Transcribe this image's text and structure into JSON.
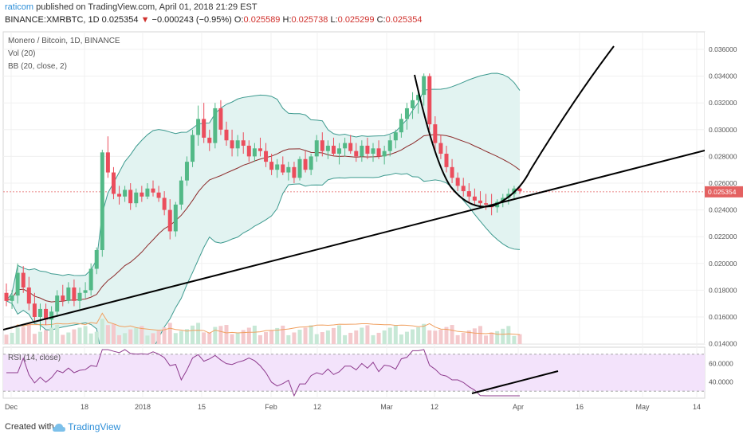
{
  "header": {
    "author": "raticom",
    "published_text": "published on TradingView.com, April 01, 2018 21:29 EST",
    "symbol": "BINANCE:XMRBTC, 1D",
    "last": "0.025354",
    "arrow": "▼",
    "change": "−0.000243 (−0.95%)",
    "o_label": "O:",
    "o_value": "0.025589",
    "h_label": "H:",
    "h_value": "0.025738",
    "l_label": "L:",
    "l_value": "0.025299",
    "c_label": "C:",
    "c_value": "0.025354"
  },
  "legend": {
    "title": "Monero / Bitcoin, 1D, BINANCE",
    "vol": "Vol (20)",
    "bb": "BB (20, close, 2)",
    "rsi": "RSI (14, close)"
  },
  "footer": {
    "created_with": "Created with",
    "brand": "TradingView"
  },
  "colors": {
    "up": "#53b987",
    "down": "#eb4d5c",
    "bb_fill": "#e2f3f1",
    "bb_band": "#3d9a8f",
    "bb_basis": "#8c2a2a",
    "vol_up": "#c7e8d6",
    "vol_down": "#f4c9cc",
    "vol_ma": "#f0a060",
    "rsi_line": "#8e3b8e",
    "rsi_fill": "#f3e3fb",
    "last_price_bg": "#e46161",
    "drawing": "#000000"
  },
  "chart_data": {
    "type": "candlestick",
    "price_axis_ticks": [
      "0.036000",
      "0.034000",
      "0.032000",
      "0.030000",
      "0.028000",
      "0.026000",
      "0.024000",
      "0.022000",
      "0.020000",
      "0.018000",
      "0.016000",
      "0.014000"
    ],
    "last_price_label": "0.025354",
    "last_price": 0.025354,
    "time_axis_ticks": [
      "Dec",
      "18",
      "2018",
      "15",
      "Feb",
      "12",
      "Mar",
      "12",
      "Apr",
      "16",
      "May",
      "14"
    ],
    "rsi_axis_ticks": [
      "60.0000",
      "40.0000"
    ],
    "rsi_levels": [
      70,
      30
    ],
    "ohlc_approx": [
      [
        0.0178,
        0.0185,
        0.0168,
        0.0172
      ],
      [
        0.0172,
        0.018,
        0.0166,
        0.0176
      ],
      [
        0.0176,
        0.02,
        0.017,
        0.0193
      ],
      [
        0.0193,
        0.0198,
        0.0178,
        0.0182
      ],
      [
        0.0182,
        0.019,
        0.0165,
        0.017
      ],
      [
        0.017,
        0.0178,
        0.0156,
        0.016
      ],
      [
        0.016,
        0.017,
        0.015,
        0.0166
      ],
      [
        0.0166,
        0.017,
        0.0154,
        0.0158
      ],
      [
        0.0158,
        0.0168,
        0.0152,
        0.0164
      ],
      [
        0.0164,
        0.018,
        0.016,
        0.0176
      ],
      [
        0.0176,
        0.0184,
        0.0168,
        0.0172
      ],
      [
        0.0172,
        0.0186,
        0.017,
        0.0182
      ],
      [
        0.0182,
        0.0188,
        0.0168,
        0.0172
      ],
      [
        0.0172,
        0.0182,
        0.0166,
        0.0178
      ],
      [
        0.0178,
        0.0186,
        0.0174,
        0.018
      ],
      [
        0.018,
        0.02,
        0.0176,
        0.0196
      ],
      [
        0.0196,
        0.0212,
        0.0192,
        0.021
      ],
      [
        0.021,
        0.0285,
        0.0205,
        0.0283
      ],
      [
        0.0283,
        0.0295,
        0.0264,
        0.0268
      ],
      [
        0.0268,
        0.0272,
        0.0248,
        0.0252
      ],
      [
        0.0252,
        0.0258,
        0.0244,
        0.025
      ],
      [
        0.025,
        0.0258,
        0.0246,
        0.0255
      ],
      [
        0.0255,
        0.026,
        0.024,
        0.0245
      ],
      [
        0.0245,
        0.0256,
        0.0242,
        0.0253
      ],
      [
        0.0253,
        0.0258,
        0.0246,
        0.025
      ],
      [
        0.025,
        0.026,
        0.0248,
        0.0256
      ],
      [
        0.0256,
        0.0262,
        0.025,
        0.0253
      ],
      [
        0.0253,
        0.0258,
        0.0246,
        0.0249
      ],
      [
        0.0249,
        0.0254,
        0.0236,
        0.024
      ],
      [
        0.024,
        0.0248,
        0.0218,
        0.0224
      ],
      [
        0.0224,
        0.0246,
        0.022,
        0.0244
      ],
      [
        0.0244,
        0.0265,
        0.024,
        0.0262
      ],
      [
        0.0262,
        0.028,
        0.0258,
        0.0276
      ],
      [
        0.0276,
        0.03,
        0.0272,
        0.0296
      ],
      [
        0.0296,
        0.0318,
        0.0288,
        0.0308
      ],
      [
        0.0308,
        0.032,
        0.029,
        0.0294
      ],
      [
        0.0294,
        0.03,
        0.0284,
        0.029
      ],
      [
        0.029,
        0.032,
        0.0286,
        0.0316
      ],
      [
        0.0316,
        0.0322,
        0.0296,
        0.03
      ],
      [
        0.03,
        0.0306,
        0.0288,
        0.0292
      ],
      [
        0.0292,
        0.03,
        0.028,
        0.0286
      ],
      [
        0.0286,
        0.0296,
        0.028,
        0.0292
      ],
      [
        0.0292,
        0.0298,
        0.0282,
        0.0288
      ],
      [
        0.0288,
        0.0292,
        0.0276,
        0.028
      ],
      [
        0.028,
        0.029,
        0.0276,
        0.0286
      ],
      [
        0.0286,
        0.0294,
        0.028,
        0.0284
      ],
      [
        0.0284,
        0.029,
        0.0272,
        0.0276
      ],
      [
        0.0276,
        0.0282,
        0.0266,
        0.027
      ],
      [
        0.027,
        0.0278,
        0.0264,
        0.0274
      ],
      [
        0.0274,
        0.028,
        0.0266,
        0.0268
      ],
      [
        0.0268,
        0.0276,
        0.0262,
        0.0272
      ],
      [
        0.0272,
        0.0276,
        0.026,
        0.0264
      ],
      [
        0.0264,
        0.028,
        0.0262,
        0.0278
      ],
      [
        0.0278,
        0.0284,
        0.0268,
        0.027
      ],
      [
        0.027,
        0.0282,
        0.0266,
        0.028
      ],
      [
        0.028,
        0.0296,
        0.0276,
        0.0292
      ],
      [
        0.0292,
        0.0298,
        0.028,
        0.0284
      ],
      [
        0.0284,
        0.0292,
        0.0278,
        0.0288
      ],
      [
        0.0288,
        0.0294,
        0.028,
        0.0282
      ],
      [
        0.0282,
        0.029,
        0.0274,
        0.0286
      ],
      [
        0.0286,
        0.0294,
        0.028,
        0.029
      ],
      [
        0.029,
        0.0296,
        0.0282,
        0.0284
      ],
      [
        0.0284,
        0.029,
        0.0276,
        0.028
      ],
      [
        0.028,
        0.0292,
        0.0276,
        0.0288
      ],
      [
        0.0288,
        0.0294,
        0.0278,
        0.0282
      ],
      [
        0.0282,
        0.029,
        0.0276,
        0.0286
      ],
      [
        0.0286,
        0.0292,
        0.0278,
        0.028
      ],
      [
        0.028,
        0.0288,
        0.0274,
        0.0284
      ],
      [
        0.0284,
        0.0296,
        0.028,
        0.0292
      ],
      [
        0.0292,
        0.03,
        0.0286,
        0.0298
      ],
      [
        0.0298,
        0.0312,
        0.0294,
        0.0308
      ],
      [
        0.0308,
        0.032,
        0.03,
        0.0316
      ],
      [
        0.0316,
        0.0328,
        0.0308,
        0.0322
      ],
      [
        0.0322,
        0.033,
        0.0312,
        0.0326
      ],
      [
        0.0326,
        0.0342,
        0.0318,
        0.034
      ],
      [
        0.034,
        0.0342,
        0.03,
        0.0304
      ],
      [
        0.0304,
        0.031,
        0.0284,
        0.029
      ],
      [
        0.029,
        0.0296,
        0.0278,
        0.0282
      ],
      [
        0.0282,
        0.0288,
        0.0268,
        0.0272
      ],
      [
        0.0272,
        0.0278,
        0.026,
        0.0264
      ],
      [
        0.0264,
        0.0268,
        0.0254,
        0.0258
      ],
      [
        0.0258,
        0.0264,
        0.025,
        0.0254
      ],
      [
        0.0254,
        0.026,
        0.0246,
        0.025
      ],
      [
        0.025,
        0.0256,
        0.0244,
        0.0247
      ],
      [
        0.0247,
        0.0254,
        0.0242,
        0.0245
      ],
      [
        0.0245,
        0.0252,
        0.024,
        0.0244
      ],
      [
        0.0244,
        0.0252,
        0.0236,
        0.0242
      ],
      [
        0.0242,
        0.0248,
        0.0238,
        0.0246
      ],
      [
        0.0246,
        0.0252,
        0.0242,
        0.0249
      ],
      [
        0.0249,
        0.0256,
        0.0244,
        0.0252
      ],
      [
        0.0252,
        0.0258,
        0.0248,
        0.0256
      ],
      [
        0.0256,
        0.0258,
        0.0252,
        0.0254
      ]
    ]
  }
}
